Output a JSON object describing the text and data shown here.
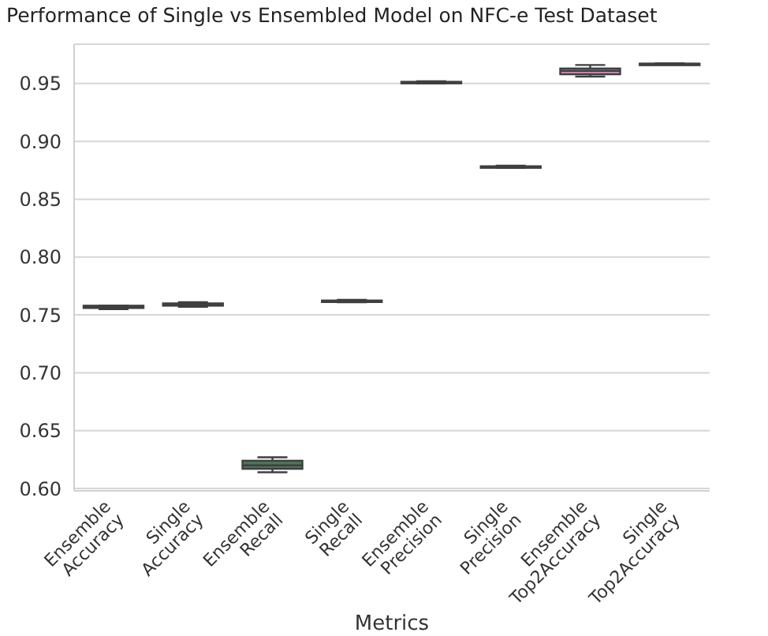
{
  "chart_data": {
    "type": "box",
    "title": "Performance of Single vs Ensembled Model on NFC-e Test Dataset",
    "xlabel": "Metrics",
    "categories": [
      "Ensemble Accuracy",
      "Single Accuracy",
      "Ensemble Recall",
      "Single Recall",
      "Ensemble Precision",
      "Single Precision",
      "Ensemble Top2Accuracy",
      "Single Top2Accuracy"
    ],
    "colors": [
      "#5a7399",
      "#b98a67",
      "#4f7558",
      "#a35a5c",
      "#7a6f9a",
      "#8a7766",
      "#c08db3",
      "#8c8c8c"
    ],
    "boxes": [
      {
        "low": 0.755,
        "q1": 0.756,
        "median": 0.757,
        "q3": 0.758,
        "high": 0.758
      },
      {
        "low": 0.757,
        "q1": 0.758,
        "median": 0.759,
        "q3": 0.76,
        "high": 0.761
      },
      {
        "low": 0.614,
        "q1": 0.617,
        "median": 0.62,
        "q3": 0.624,
        "high": 0.627
      },
      {
        "low": 0.761,
        "q1": 0.7615,
        "median": 0.762,
        "q3": 0.7625,
        "high": 0.763
      },
      {
        "low": 0.95,
        "q1": 0.9505,
        "median": 0.951,
        "q3": 0.9515,
        "high": 0.952
      },
      {
        "low": 0.877,
        "q1": 0.8775,
        "median": 0.878,
        "q3": 0.8785,
        "high": 0.879
      },
      {
        "low": 0.956,
        "q1": 0.958,
        "median": 0.961,
        "q3": 0.963,
        "high": 0.966
      },
      {
        "low": 0.9665,
        "q1": 0.9668,
        "median": 0.967,
        "q3": 0.9672,
        "high": 0.9675
      }
    ],
    "ylim": [
      0.598,
      0.984
    ],
    "yticks": [
      {
        "value": 0.6,
        "label": "0.60"
      },
      {
        "value": 0.65,
        "label": "0.65"
      },
      {
        "value": 0.7,
        "label": "0.70"
      },
      {
        "value": 0.75,
        "label": "0.75"
      },
      {
        "value": 0.8,
        "label": "0.80"
      },
      {
        "value": 0.85,
        "label": "0.85"
      },
      {
        "value": 0.9,
        "label": "0.90"
      },
      {
        "value": 0.95,
        "label": "0.95"
      }
    ],
    "grid": "y"
  }
}
